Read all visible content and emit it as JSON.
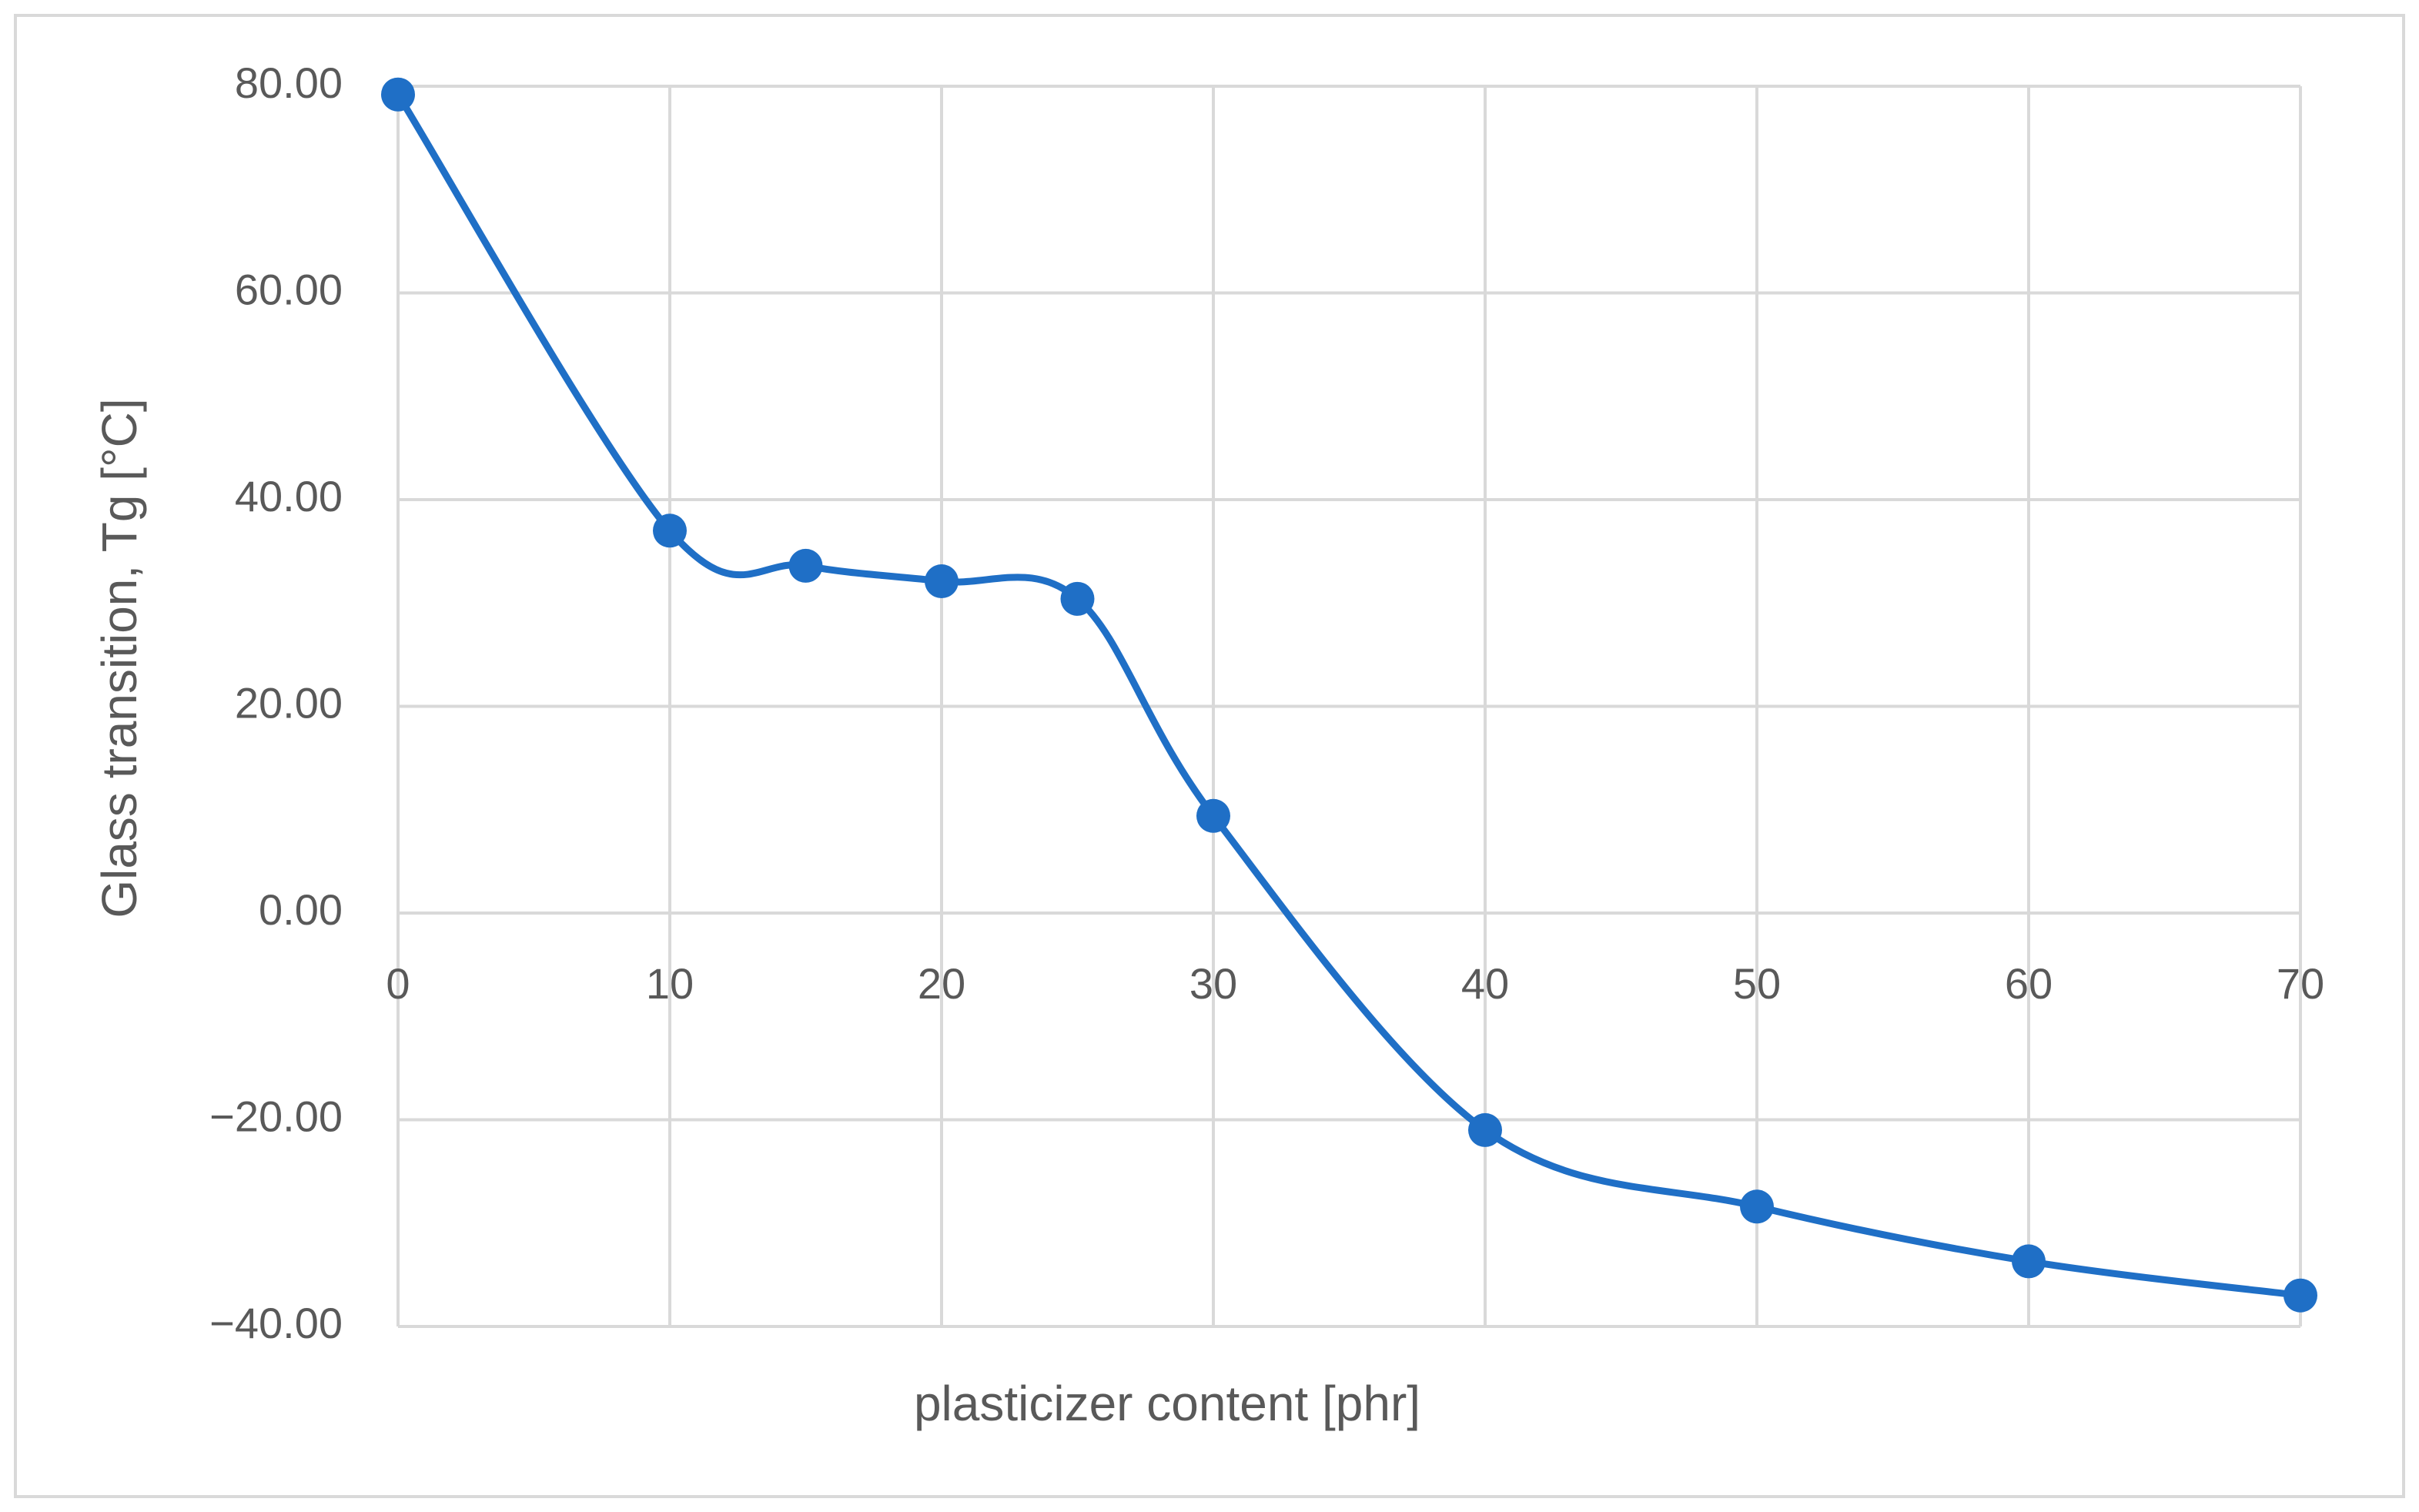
{
  "chart_data": {
    "type": "line",
    "x_label": "plasticizer content [phr]",
    "y_label": "Glass transition, Tg [°C]",
    "x": [
      0,
      10,
      15,
      20,
      25,
      30,
      40,
      50,
      60,
      70
    ],
    "values": [
      79.2,
      37.0,
      33.6,
      32.1,
      30.4,
      9.4,
      -21.0,
      -28.4,
      -33.7,
      -37.0
    ],
    "color": "#1f6fc6",
    "smooth": true,
    "markers": true,
    "xlim": [
      0,
      70
    ],
    "xticks": [
      0,
      10,
      20,
      30,
      40,
      50,
      60,
      70
    ],
    "ylim": [
      -40,
      80
    ],
    "yticks": [
      {
        "value": -40,
        "label": "−40.00"
      },
      {
        "value": -20,
        "label": "−20.00"
      },
      {
        "value": 0,
        "label": "0.00"
      },
      {
        "value": 20,
        "label": "20.00"
      },
      {
        "value": 40,
        "label": "40.00"
      },
      {
        "value": 60,
        "label": "60.00"
      },
      {
        "value": 80,
        "label": "80.00"
      }
    ],
    "grid": true
  }
}
